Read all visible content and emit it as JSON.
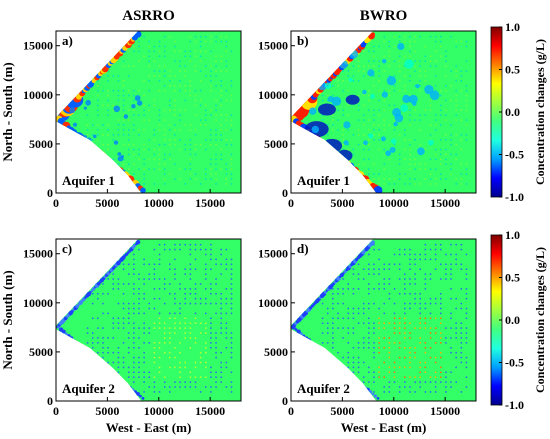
{
  "chart_data": {
    "type": "heatmap",
    "column_titles": [
      "ASRRO",
      "BWRO"
    ],
    "ylabel": "North - South (m)",
    "xlabel": "West - East (m)",
    "xlim": [
      0,
      18000
    ],
    "ylim": [
      0,
      16500
    ],
    "x_ticks": [
      0,
      5000,
      10000,
      15000
    ],
    "y_ticks": [
      0,
      5000,
      10000,
      15000
    ],
    "colorbar": {
      "label": "Concentration changes (g/L)",
      "min": -1.0,
      "max": 1.0,
      "ticks": [
        "1.0",
        "0.5",
        "0.0",
        "-0.5",
        "-1.0"
      ],
      "colors": [
        "#00008f",
        "#0000ff",
        "#00a0ff",
        "#20ffe0",
        "#40ff80",
        "#a0ff40",
        "#ffff00",
        "#ff8000",
        "#ff0000",
        "#800000"
      ]
    },
    "panels": [
      {
        "tag": "a)",
        "aquifer": "Aquifer 1",
        "scenario": "ASRRO"
      },
      {
        "tag": "b)",
        "aquifer": "Aquifer 1",
        "scenario": "BWRO"
      },
      {
        "tag": "c)",
        "aquifer": "Aquifer 2",
        "scenario": "ASRRO"
      },
      {
        "tag": "d)",
        "aquifer": "Aquifer 2",
        "scenario": "BWRO"
      }
    ]
  }
}
